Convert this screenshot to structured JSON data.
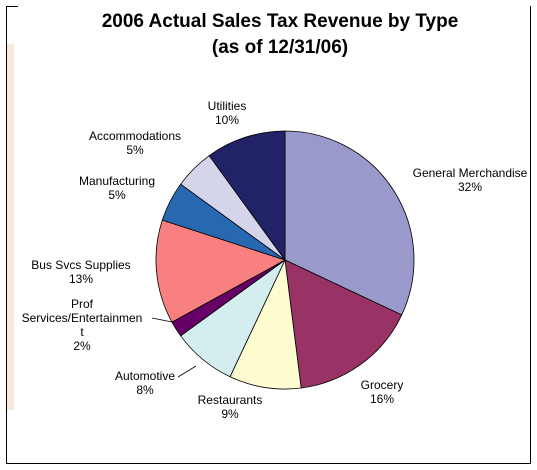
{
  "chart_data": {
    "type": "pie",
    "title_line1": "2006 Actual Sales Tax Revenue by Type",
    "title_line2": "(as of 12/31/06)",
    "slices": [
      {
        "label": "General Merchandise",
        "value_label": "32%",
        "value": 32,
        "color": "#9999cc"
      },
      {
        "label": "Grocery",
        "value_label": "16%",
        "value": 16,
        "color": "#993366"
      },
      {
        "label": "Restaurants",
        "value_label": "9%",
        "value": 9,
        "color": "#fdfbd0"
      },
      {
        "label": "Automotive",
        "value_label": "8%",
        "value": 8,
        "color": "#d4eef0"
      },
      {
        "label": "Prof Services/Entertainment",
        "label_lines": [
          "Prof",
          "Services/Entertainmen",
          "t"
        ],
        "value_label": "2%",
        "value": 2,
        "color": "#660066"
      },
      {
        "label": "Bus Svcs Supplies",
        "value_label": "13%",
        "value": 13,
        "color": "#f98080"
      },
      {
        "label": "Manufacturing",
        "value_label": "5%",
        "value": 5,
        "color": "#2868b0"
      },
      {
        "label": "Accommodations",
        "value_label": "5%",
        "value": 5,
        "color": "#d4d4ea"
      },
      {
        "label": "Utilities",
        "value_label": "10%",
        "value": 10,
        "color": "#222266"
      }
    ]
  }
}
